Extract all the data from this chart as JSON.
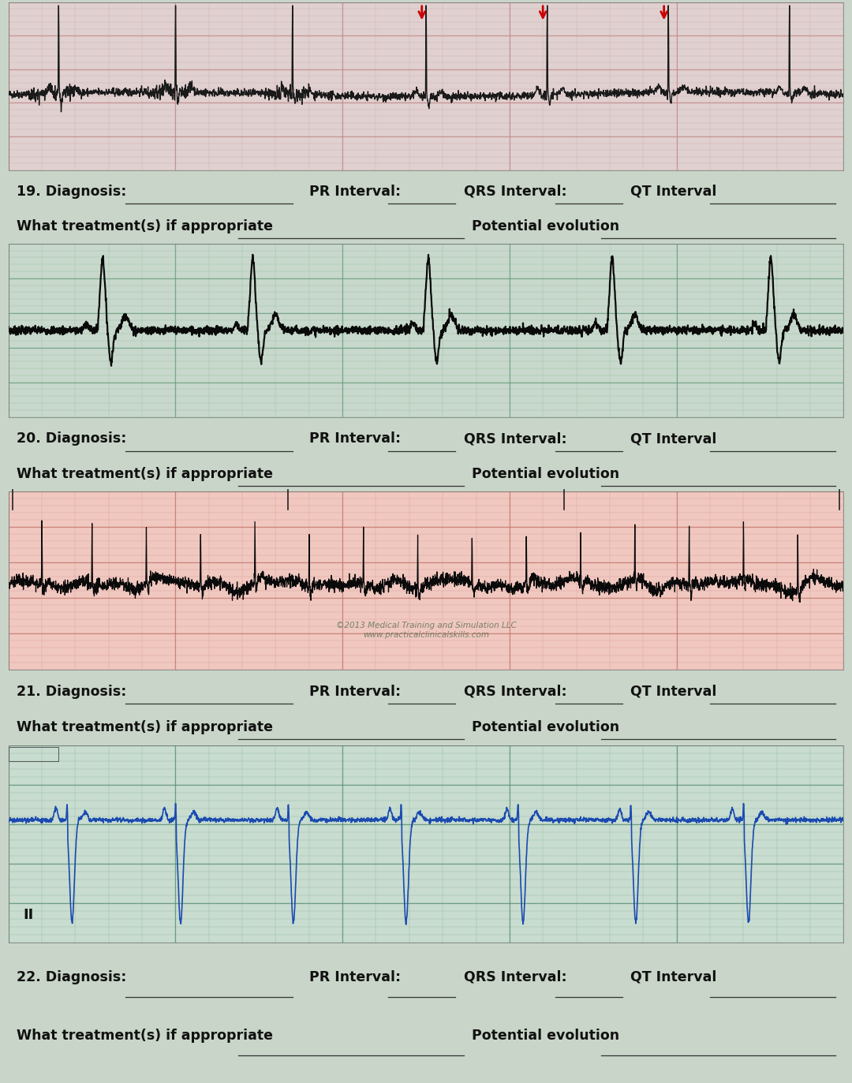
{
  "bg_color": "#c8d5c8",
  "text_color": "#111111",
  "label_fontsize": 12.5,
  "lines": [
    {
      "num": "19",
      "diag_label": "19. Diagnosis:",
      "pr_label": "PR Interval:",
      "qrs_label": "QRS Interval:",
      "qt_label": "QT Interval",
      "treat_label": "What treatment(s) if appropriate",
      "evol_label": "Potential evolution"
    },
    {
      "num": "20",
      "diag_label": "20. Diagnosis:",
      "pr_label": "PR Interval:",
      "qrs_label": "QRS Interval:",
      "qt_label": "QT Interval",
      "treat_label": "What treatment(s) if appropriate",
      "evol_label": "Potential evolution"
    },
    {
      "num": "21",
      "diag_label": "21. Diagnosis:",
      "pr_label": "PR Interval:",
      "qrs_label": "QRS Interval:",
      "qt_label": "QT Interval",
      "treat_label": "What treatment(s) if appropriate",
      "evol_label": "Potential evolution"
    },
    {
      "num": "22",
      "diag_label": "22. Diagnosis:",
      "pr_label": "PR Interval:",
      "qrs_label": "QRS Interval:",
      "qt_label": "QT Interval",
      "treat_label": "What treatment(s) if appropriate",
      "evol_label": "Potential evolution"
    }
  ],
  "arrow_color": "#cc0000",
  "copyright_text": "©2013 Medical Training and Simulation LLC\nwww.practicalclinicalskills.com",
  "ecg1_bg": "#e0d0d0",
  "ecg1_minor": "#c8a0a0",
  "ecg1_major": "#c08080",
  "ecg2_bg": "#c8d8cc",
  "ecg2_minor": "#88b890",
  "ecg2_major": "#60987a",
  "ecg3_bg": "#f0c8c0",
  "ecg3_minor": "#d09090",
  "ecg3_major": "#c07060",
  "ecg4_bg": "#c8dcd0",
  "ecg4_minor": "#80b090",
  "ecg4_major": "#508868"
}
